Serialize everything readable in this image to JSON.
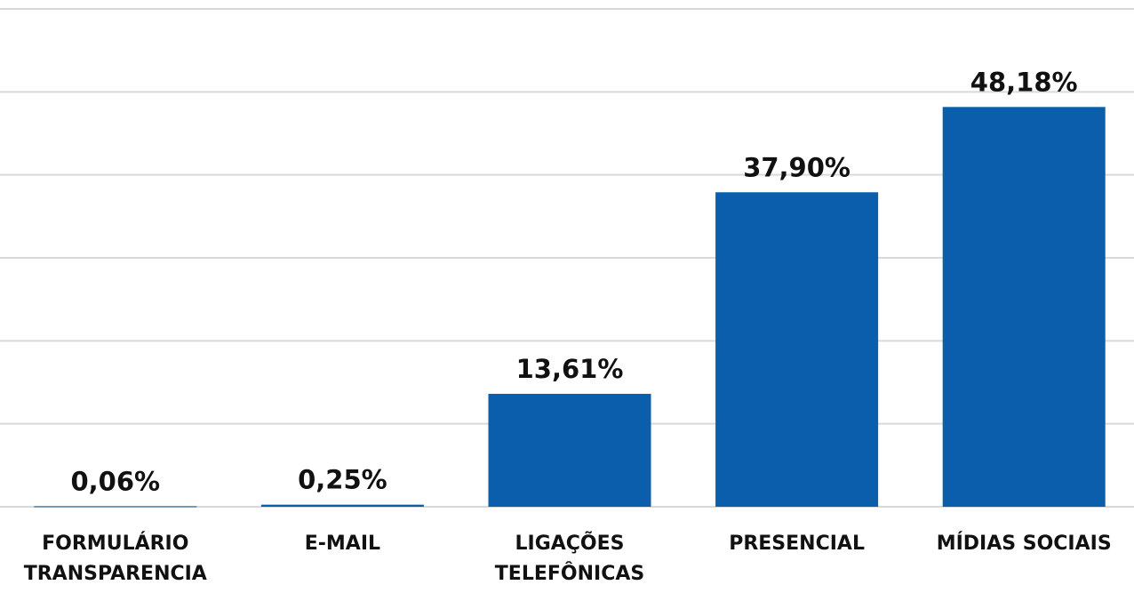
{
  "chart_data": {
    "type": "bar",
    "categories": [
      "FORMULÁRIO\nTRANSPARENCIA",
      "E-MAIL",
      "LIGAÇÕES\nTELEFÔNICAS",
      "PRESENCIAL",
      "MÍDIAS SOCIAIS"
    ],
    "values": [
      0.06,
      0.25,
      13.61,
      37.9,
      48.18
    ],
    "value_labels": [
      "0,06%",
      "0,25%",
      "13,61%",
      "37,90%",
      "48,18%"
    ],
    "color": "#0a5eab",
    "ylim": [
      0,
      60
    ],
    "yticks": [
      0,
      10,
      20,
      30,
      40,
      50,
      60
    ],
    "grid": true
  }
}
